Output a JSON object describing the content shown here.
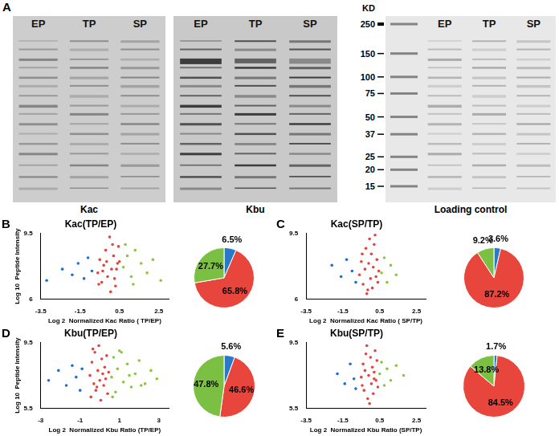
{
  "panel_a": {
    "panel": "A",
    "blots": [
      {
        "caption": "Kac",
        "lanes": [
          "EP",
          "TP",
          "SP"
        ]
      },
      {
        "caption": "Kbu",
        "lanes": [
          "EP",
          "TP",
          "SP"
        ]
      },
      {
        "caption": "Loading control",
        "lanes": [
          "EP",
          "TP",
          "SP"
        ],
        "marker_unit": "KD",
        "markers": [
          250,
          150,
          100,
          75,
          50,
          37,
          25,
          20,
          15
        ]
      }
    ]
  },
  "chart_data": [
    {
      "type": "scatter",
      "panel": "B",
      "title": "Kac(TP/EP)",
      "x_label": "Log 2  Normalized Kac Ratio ( TP/EP)",
      "y_label": "Log 10  Peptide Intensity",
      "xlim": [
        -3.5,
        3
      ],
      "xticks": [
        -3.5,
        -1.5,
        0.5,
        2.5
      ],
      "ylim": [
        6,
        9.5
      ],
      "yticks": [
        6,
        9.5
      ],
      "grid": false,
      "series": [
        {
          "color": "#1f6fd1",
          "x": [
            -3.2,
            -2.4,
            -1.9,
            -1.6,
            -1.3,
            -1.1,
            -0.9
          ],
          "values": [
            7.0,
            7.6,
            7.3,
            7.9,
            7.1,
            8.2,
            7.5
          ]
        },
        {
          "color": "#e0463f",
          "x": [
            -0.6,
            -0.5,
            -0.4,
            -0.35,
            -0.3,
            -0.2,
            -0.15,
            -0.1,
            0,
            0.05,
            0.1,
            0.15,
            0.2,
            0.25,
            0.3,
            0.35,
            0.4,
            0.45,
            0.5,
            -0.55
          ],
          "values": [
            7.4,
            8.1,
            6.9,
            7.5,
            7.8,
            8.6,
            8.0,
            7.2,
            9.3,
            6.4,
            7.6,
            8.9,
            8.3,
            7.1,
            6.7,
            7.6,
            7.9,
            8.8,
            8.0,
            6.8
          ]
        },
        {
          "color": "#8cc63f",
          "x": [
            0.7,
            0.8,
            0.9,
            1.1,
            1.2,
            1.3,
            1.6,
            1.9,
            2.2,
            2.6
          ],
          "values": [
            7.7,
            8.9,
            8.3,
            7.2,
            6.8,
            8.6,
            7.9,
            7.4,
            8.1,
            7.0
          ]
        }
      ]
    },
    {
      "type": "pie",
      "values": [
        6.5,
        65.8,
        27.7
      ],
      "value_labels": [
        "6.5%",
        "65.8%",
        "27.7%"
      ],
      "colors": [
        "#2a78c9",
        "#e8453c",
        "#7cc043"
      ],
      "data_labels": true
    },
    {
      "type": "scatter",
      "panel": "C",
      "title": "Kac(SP/TP)",
      "x_label": "Log 2  Normalized Kac Ratio ( SP/TP)",
      "xlim": [
        -3.5,
        3
      ],
      "xticks": [
        -3.5,
        -1.5,
        0.5,
        2.5
      ],
      "ylim": [
        6,
        9.5
      ],
      "yticks": [
        6,
        9.5
      ],
      "grid": false,
      "series": [
        {
          "color": "#1f6fd1",
          "x": [
            -2.1,
            -1.6,
            -1.3,
            -1.0,
            -0.8
          ],
          "values": [
            7.8,
            7.2,
            8.1,
            7.5,
            6.9
          ]
        },
        {
          "color": "#e0463f",
          "x": [
            -0.6,
            -0.5,
            -0.4,
            -0.3,
            -0.25,
            -0.2,
            -0.1,
            -0.05,
            0,
            0.05,
            0.1,
            0.15,
            0.2,
            0.3,
            0.35,
            0.4,
            0.45,
            -0.45,
            0.25,
            -0.15
          ],
          "values": [
            7.3,
            8.0,
            6.8,
            7.6,
            8.7,
            6.3,
            7.9,
            9.2,
            7.1,
            8.4,
            6.6,
            7.7,
            8.9,
            7.2,
            8.1,
            6.9,
            7.5,
            8.4,
            9.4,
            6.5
          ]
        },
        {
          "color": "#8cc63f",
          "x": [
            0.6,
            0.75,
            0.9,
            1.1,
            1.4
          ],
          "values": [
            7.4,
            8.2,
            6.9,
            7.8,
            7.3
          ]
        }
      ]
    },
    {
      "type": "pie",
      "values": [
        3.6,
        87.2,
        9.2
      ],
      "value_labels": [
        "3.6%",
        "87.2%",
        "9.2%"
      ],
      "colors": [
        "#2a78c9",
        "#e8453c",
        "#7cc043"
      ],
      "data_labels": true
    },
    {
      "type": "scatter",
      "panel": "D",
      "title": "Kbu(TP/EP)",
      "x_label": "Log 2  Normalized Kbu Ratio (TP/EP)",
      "y_label": "Log 10  Peptide Intensity",
      "xlim": [
        -3,
        3.5
      ],
      "xticks": [
        -3,
        -1,
        1,
        3
      ],
      "ylim": [
        5.5,
        9.5
      ],
      "yticks": [
        5.5,
        9.5
      ],
      "grid": false,
      "series": [
        {
          "color": "#1f6fd1",
          "x": [
            -2.6,
            -2.1,
            -1.7,
            -1.4,
            -1.2,
            -1.0,
            -0.9
          ],
          "values": [
            7.2,
            7.8,
            6.9,
            8.1,
            7.4,
            6.6,
            7.9
          ]
        },
        {
          "color": "#e0463f",
          "x": [
            -0.5,
            -0.45,
            -0.4,
            -0.3,
            -0.25,
            -0.2,
            -0.1,
            -0.05,
            0,
            0.05,
            0.1,
            0.15,
            0.2,
            0.25,
            0.3,
            0.35,
            0.4,
            0.45,
            -0.35,
            -0.15
          ],
          "values": [
            7.5,
            6.2,
            8.3,
            7.0,
            8.9,
            6.6,
            7.8,
            9.3,
            7.2,
            6.0,
            8.5,
            7.6,
            6.9,
            8.0,
            7.3,
            8.7,
            6.4,
            7.7,
            9.1,
            6.8
          ]
        },
        {
          "color": "#8cc63f",
          "x": [
            0.6,
            0.7,
            0.8,
            0.9,
            1.0,
            1.2,
            1.4,
            1.6,
            1.8,
            2.0,
            2.3,
            2.6,
            2.9,
            0.65,
            1.1,
            1.5,
            2.1
          ],
          "values": [
            7.4,
            8.6,
            6.5,
            7.9,
            9.0,
            7.1,
            8.2,
            6.8,
            7.6,
            8.4,
            7.0,
            7.8,
            7.3,
            6.2,
            8.9,
            7.5,
            6.9
          ]
        }
      ]
    },
    {
      "type": "pie",
      "values": [
        5.6,
        46.6,
        47.8
      ],
      "value_labels": [
        "5.6%",
        "46.6%",
        "47.8%"
      ],
      "colors": [
        "#2a78c9",
        "#e8453c",
        "#7cc043"
      ],
      "data_labels": true
    },
    {
      "type": "scatter",
      "panel": "E",
      "title": "Kbu(SP/TP)",
      "x_label": "Log 2  Normalized Kbu Ratio (SP/TP)",
      "xlim": [
        -3.5,
        3
      ],
      "xticks": [
        -3.5,
        -1.5,
        0.5,
        2.5
      ],
      "ylim": [
        5.5,
        9.5
      ],
      "yticks": [
        5.5,
        9.5
      ],
      "grid": false,
      "series": [
        {
          "color": "#1f6fd1",
          "x": [
            -1.8,
            -1.4,
            -1.1,
            -0.9,
            -0.8
          ],
          "values": [
            7.6,
            7.0,
            8.2,
            7.3,
            6.7
          ]
        },
        {
          "color": "#e0463f",
          "x": [
            -0.5,
            -0.4,
            -0.35,
            -0.3,
            -0.2,
            -0.15,
            -0.1,
            0,
            0.05,
            0.1,
            0.15,
            0.2,
            0.25,
            0.3,
            0.35,
            0.4,
            -0.45,
            -0.25,
            -0.05,
            0.2
          ],
          "values": [
            7.4,
            8.2,
            6.6,
            7.8,
            9.3,
            6.1,
            7.5,
            8.6,
            7.0,
            8.0,
            6.4,
            7.7,
            9.0,
            7.2,
            8.4,
            6.8,
            6.9,
            8.8,
            5.8,
            7.3
          ]
        },
        {
          "color": "#8cc63f",
          "x": [
            0.5,
            0.6,
            0.75,
            0.9,
            1.1,
            1.4,
            1.8
          ],
          "values": [
            7.6,
            8.3,
            6.9,
            7.9,
            7.2,
            8.1,
            7.5
          ]
        }
      ]
    },
    {
      "type": "pie",
      "values": [
        1.7,
        84.5,
        13.8
      ],
      "value_labels": [
        "1.7%",
        "84.5%",
        "13.8%"
      ],
      "colors": [
        "#2a78c9",
        "#e8453c",
        "#7cc043"
      ],
      "data_labels": true
    }
  ]
}
